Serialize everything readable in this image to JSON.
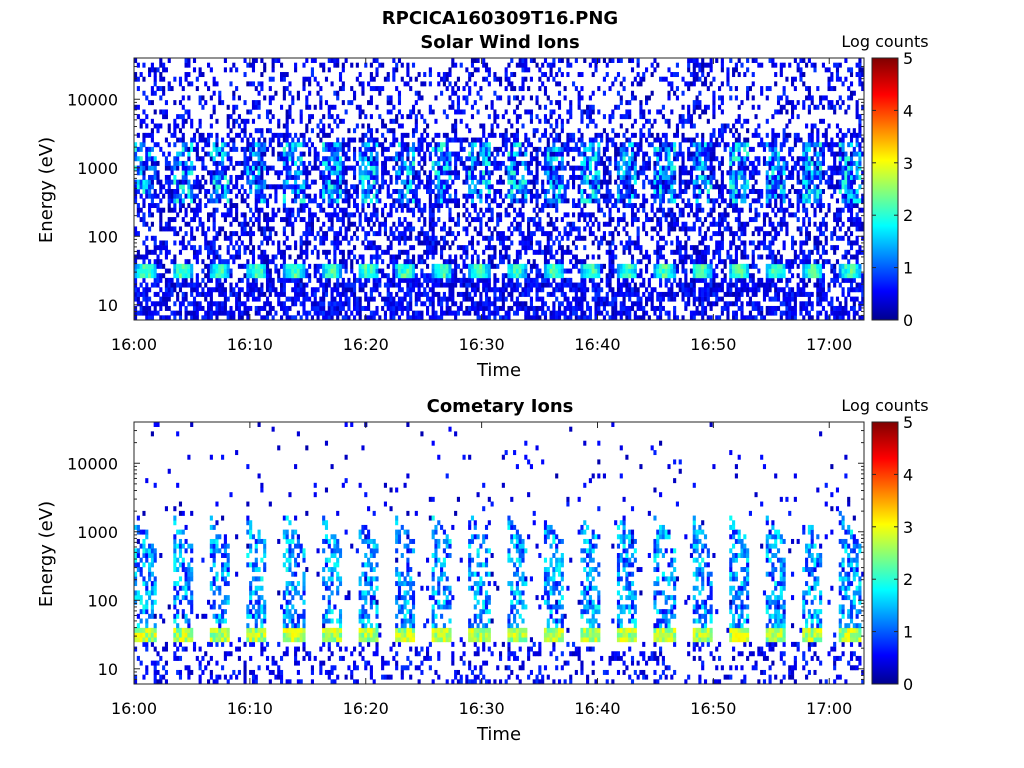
{
  "figure": {
    "title": "RPCICA160309T16.PNG"
  },
  "chart_data": [
    {
      "type": "heatmap",
      "title": "Solar Wind Ions",
      "xlabel": "Time",
      "ylabel": "Energy (eV)",
      "x_ticks": [
        "16:00",
        "16:10",
        "16:20",
        "16:30",
        "16:40",
        "16:50",
        "17:00"
      ],
      "x_range": [
        "16:00",
        "17:03"
      ],
      "y_scale": "log",
      "y_ticks": [
        10,
        100,
        1000,
        10000
      ],
      "y_tick_labels": [
        "10",
        "100",
        "1000",
        "10000"
      ],
      "y_range": [
        6,
        40000
      ],
      "colorbar": {
        "label": "Log counts",
        "range": [
          0,
          5
        ],
        "ticks": [
          "0",
          "1",
          "2",
          "3",
          "4",
          "5"
        ],
        "colormap": "jet"
      },
      "features": {
        "background_density": 0.45,
        "band_energy_eV": 30,
        "band_peak_log_counts": 2.6,
        "mid_peak_energy_eV": 900,
        "mid_peak_log_counts": 2.2,
        "sweep_period_min": 3.2
      }
    },
    {
      "type": "heatmap",
      "title": "Cometary Ions",
      "xlabel": "Time",
      "ylabel": "Energy (eV)",
      "x_ticks": [
        "16:00",
        "16:10",
        "16:20",
        "16:30",
        "16:40",
        "16:50",
        "17:00"
      ],
      "x_range": [
        "16:00",
        "17:03"
      ],
      "y_scale": "log",
      "y_ticks": [
        10,
        100,
        1000,
        10000
      ],
      "y_tick_labels": [
        "10",
        "100",
        "1000",
        "10000"
      ],
      "y_range": [
        6,
        40000
      ],
      "colorbar": {
        "label": "Log counts",
        "range": [
          0,
          5
        ],
        "ticks": [
          "0",
          "1",
          "2",
          "3",
          "4",
          "5"
        ],
        "colormap": "jet"
      },
      "features": {
        "background_density": 0.03,
        "band_energy_eV": 30,
        "band_peak_log_counts": 3.2,
        "sweep_top_energy_eV": 300,
        "sweep_period_min": 3.2
      }
    }
  ]
}
